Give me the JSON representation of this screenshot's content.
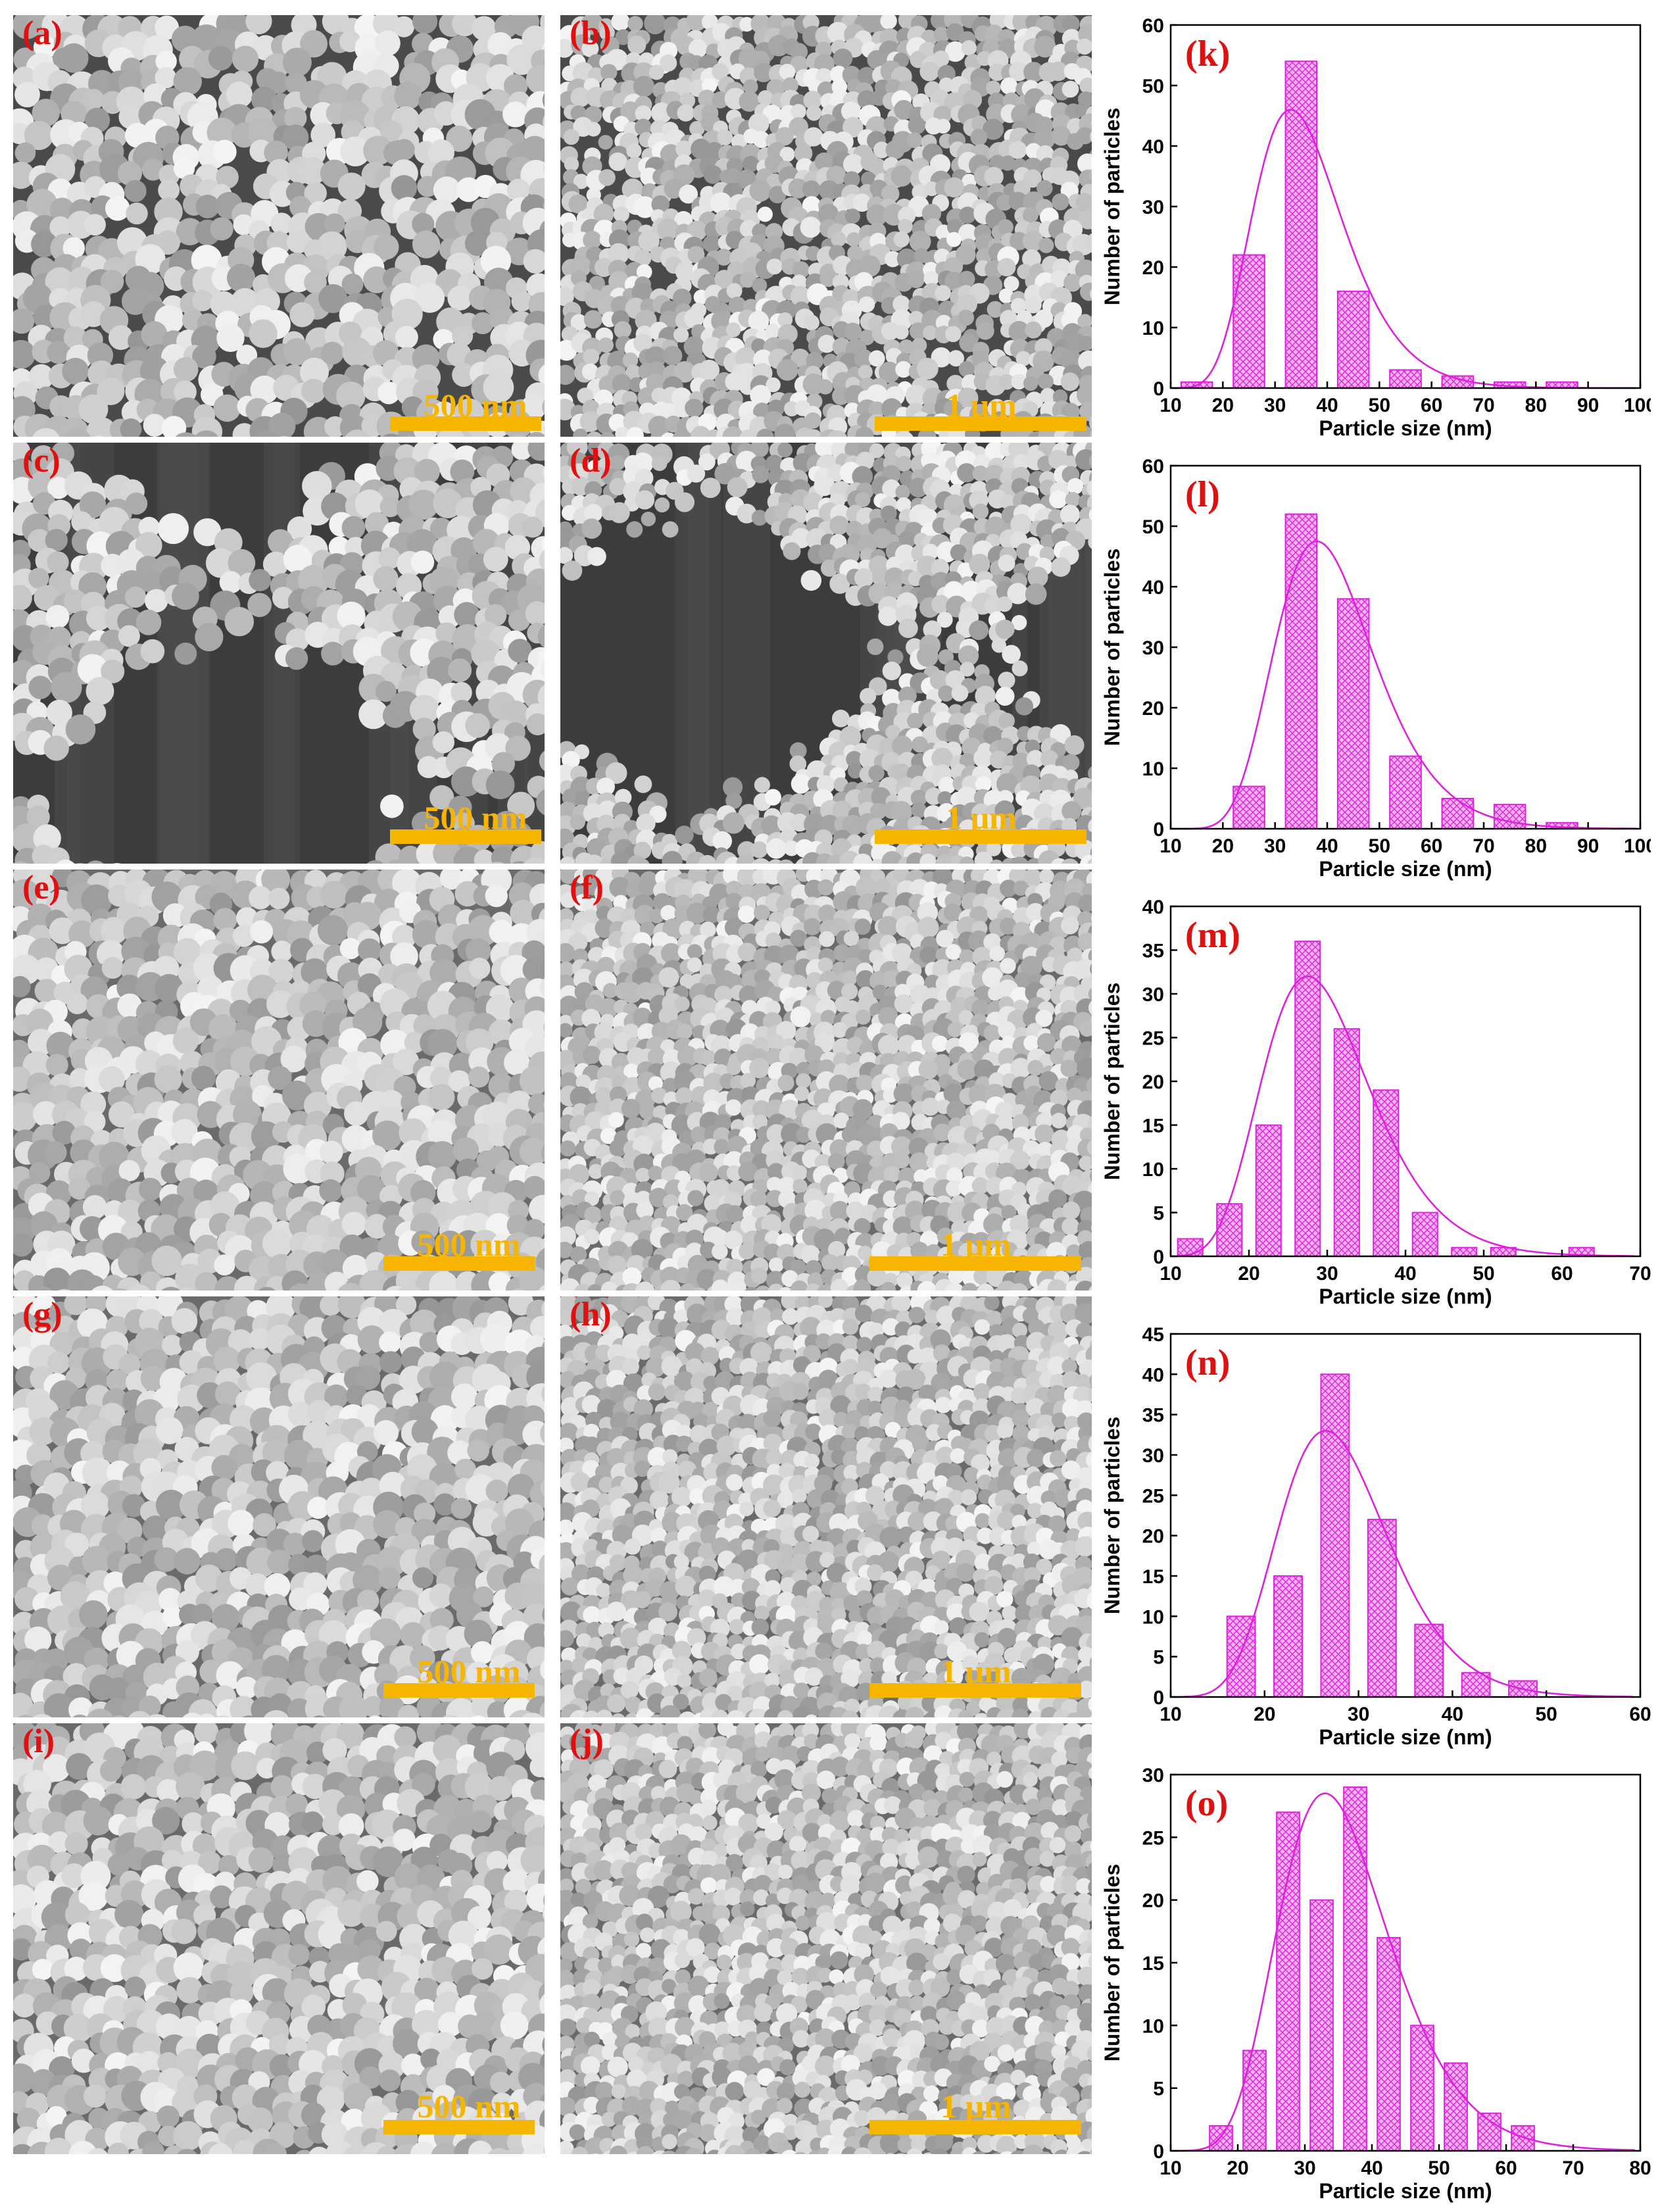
{
  "sem_panels": [
    {
      "letter": "(a)",
      "scale": "500 nm",
      "tone": "loose"
    },
    {
      "letter": "(b)",
      "scale": "1 μm",
      "tone": "loose"
    },
    {
      "letter": "(c)",
      "scale": "500 nm",
      "tone": "sparse"
    },
    {
      "letter": "(d)",
      "scale": "1 μm",
      "tone": "sparse"
    },
    {
      "letter": "(e)",
      "scale": "500 nm",
      "tone": "dense"
    },
    {
      "letter": "(f)",
      "scale": "1 μm",
      "tone": "dense"
    },
    {
      "letter": "(g)",
      "scale": "500 nm",
      "tone": "dense"
    },
    {
      "letter": "(h)",
      "scale": "1 μm",
      "tone": "dense"
    },
    {
      "letter": "(i)",
      "scale": "500 nm",
      "tone": "dense"
    },
    {
      "letter": "(j)",
      "scale": "1 μm",
      "tone": "dense"
    }
  ],
  "colors": {
    "panel_letter": "#e01010",
    "scale_bar": "#f6b500",
    "histogram": "#e020e0",
    "histogram_fill": "#f7b6f2"
  },
  "chart_data": [
    {
      "type": "bar",
      "panel_label": "(k)",
      "xlabel": "Particle size (nm)",
      "ylabel": "Number of particles",
      "xlim": [
        10,
        100
      ],
      "ylim": [
        0,
        60
      ],
      "xticks": [
        10,
        20,
        30,
        40,
        50,
        60,
        70,
        80,
        90,
        100
      ],
      "yticks": [
        0,
        10,
        20,
        30,
        40,
        50,
        60
      ],
      "bin_width": 6,
      "bins": [
        15,
        25,
        35,
        45,
        55,
        65,
        75,
        85
      ],
      "values": [
        1,
        22,
        54,
        16,
        3,
        2,
        1,
        1
      ],
      "fit": {
        "type": "lognormal",
        "peak_x": 33,
        "peak_y": 46,
        "sigma": 0.26
      }
    },
    {
      "type": "bar",
      "panel_label": "(l)",
      "xlabel": "Particle size (nm)",
      "ylabel": "Number of particles",
      "xlim": [
        10,
        100
      ],
      "ylim": [
        0,
        60
      ],
      "xticks": [
        10,
        20,
        30,
        40,
        50,
        60,
        70,
        80,
        90,
        100
      ],
      "yticks": [
        0,
        10,
        20,
        30,
        40,
        50,
        60
      ],
      "bin_width": 6,
      "bins": [
        25,
        35,
        45,
        55,
        65,
        75,
        85
      ],
      "values": [
        7,
        52,
        38,
        12,
        5,
        4,
        1
      ],
      "fit": {
        "type": "lognormal",
        "peak_x": 38,
        "peak_y": 47.5,
        "sigma": 0.25
      }
    },
    {
      "type": "bar",
      "panel_label": "(m)",
      "xlabel": "Particle size (nm)",
      "ylabel": "Number of particles",
      "xlim": [
        10,
        70
      ],
      "ylim": [
        0,
        40
      ],
      "xticks": [
        10,
        20,
        30,
        40,
        50,
        60,
        70
      ],
      "yticks": [
        0,
        5,
        10,
        15,
        20,
        25,
        30,
        35,
        40
      ],
      "bin_width": 3.2,
      "bins": [
        12.5,
        17.5,
        22.5,
        27.5,
        32.5,
        37.5,
        42.5,
        47.5,
        52.5,
        57.5,
        62.5
      ],
      "values": [
        2,
        6,
        15,
        36,
        26,
        19,
        5,
        1,
        1,
        0,
        1
      ],
      "fit": {
        "type": "lognormal",
        "peak_x": 27.5,
        "peak_y": 32,
        "sigma": 0.25
      }
    },
    {
      "type": "bar",
      "panel_label": "(n)",
      "xlabel": "Particle size (nm)",
      "ylabel": "Number of particles",
      "xlim": [
        10,
        60
      ],
      "ylim": [
        0,
        45
      ],
      "xticks": [
        10,
        20,
        30,
        40,
        50,
        60
      ],
      "yticks": [
        0,
        5,
        10,
        15,
        20,
        25,
        30,
        35,
        40,
        45
      ],
      "bin_width": 3,
      "bins": [
        17.5,
        22.5,
        27.5,
        32.5,
        37.5,
        42.5,
        47.5
      ],
      "values": [
        10,
        15,
        40,
        22,
        9,
        3,
        2
      ],
      "fit": {
        "type": "lognormal",
        "peak_x": 26.5,
        "peak_y": 33,
        "sigma": 0.22
      }
    },
    {
      "type": "bar",
      "panel_label": "(o)",
      "xlabel": "Particle size (nm)",
      "ylabel": "Number of particles",
      "xlim": [
        10,
        80
      ],
      "ylim": [
        0,
        30
      ],
      "xticks": [
        10,
        20,
        30,
        40,
        50,
        60,
        70,
        80
      ],
      "yticks": [
        0,
        5,
        10,
        15,
        20,
        25,
        30
      ],
      "bin_width": 3.4,
      "bins": [
        17.5,
        22.5,
        27.5,
        32.5,
        37.5,
        42.5,
        47.5,
        52.5,
        57.5,
        62.5
      ],
      "values": [
        2,
        8,
        27,
        20,
        29,
        17,
        10,
        7,
        3,
        2
      ],
      "fit": {
        "type": "lognormal",
        "peak_x": 33,
        "peak_y": 28.5,
        "sigma": 0.25
      }
    }
  ]
}
